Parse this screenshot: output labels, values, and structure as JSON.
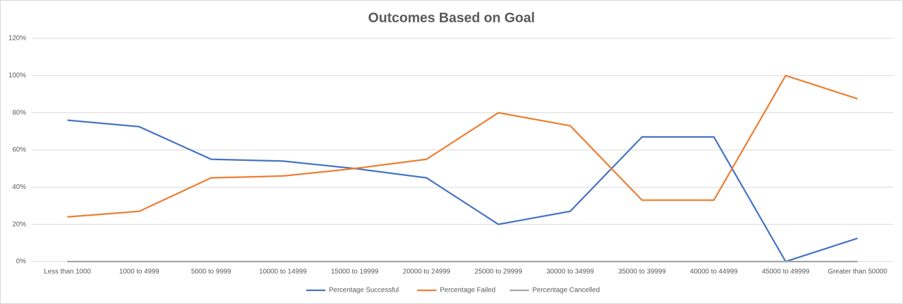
{
  "chart_data": {
    "type": "line",
    "title": "Outcomes Based on Goal",
    "categories": [
      "Less than 1000",
      "1000 to 4999",
      "5000 to 9999",
      "10000 to 14999",
      "15000 to 19999",
      "20000 to 24999",
      "25000 to 29999",
      "30000 to 34999",
      "35000 to 39999",
      "40000 to 44999",
      "45000 to 49999",
      "Greater than 50000"
    ],
    "series": [
      {
        "name": "Percentage Successful",
        "color": "#4472c4",
        "values": [
          76,
          72.5,
          55,
          54,
          50,
          45,
          20,
          27,
          67,
          67,
          0,
          12.5
        ]
      },
      {
        "name": "Percentage Failed",
        "color": "#ed7d31",
        "values": [
          24,
          27,
          45,
          46,
          50,
          55,
          80,
          73,
          33,
          33,
          100,
          87.5
        ]
      },
      {
        "name": "Percentage Cancelled",
        "color": "#a5a5a5",
        "values": [
          0,
          0,
          0,
          0,
          0,
          0,
          0,
          0,
          0,
          0,
          0,
          0
        ]
      }
    ],
    "ylim": [
      0,
      120
    ],
    "yticks": [
      {
        "value": 0,
        "label": "0%"
      },
      {
        "value": 20,
        "label": "20%"
      },
      {
        "value": 40,
        "label": "40%"
      },
      {
        "value": 60,
        "label": "60%"
      },
      {
        "value": 80,
        "label": "80%"
      },
      {
        "value": 100,
        "label": "100%"
      },
      {
        "value": 120,
        "label": "120%"
      }
    ],
    "grid": true,
    "legend": "bottom"
  }
}
